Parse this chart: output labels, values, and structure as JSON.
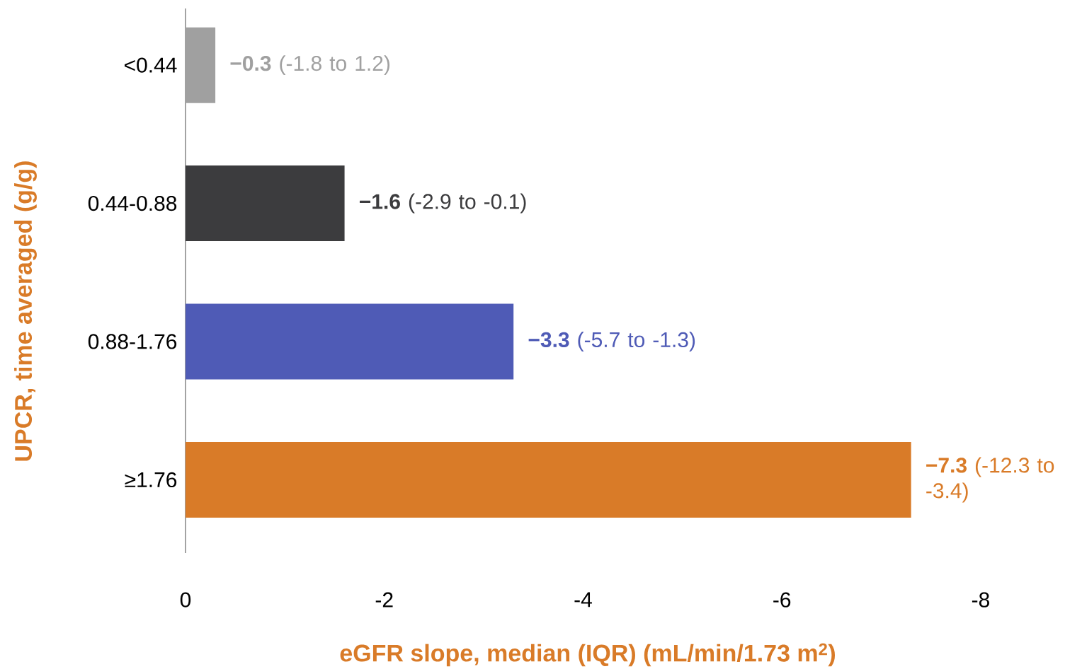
{
  "chart_data": {
    "type": "bar",
    "orientation": "horizontal",
    "ylabel": "UPCR, time averaged (g/g)",
    "xlabel": "eGFR slope, median (IQR) (mL/min/1.73 m$^{2}$)",
    "categories": [
      "<0.44",
      "0.44-0.88",
      "0.88-1.76",
      "≥1.76"
    ],
    "values": [
      -0.3,
      -1.6,
      -3.3,
      -7.3
    ],
    "colors": [
      "#a0a0a0",
      "#3c3c3e",
      "#4f5bb6",
      "#d97b28"
    ],
    "value_labels": [
      "**−0.3** (-1.8 to 1.2)",
      "**−1.6** (-2.9 to -0.1)",
      "**−3.3** (-5.7 to -1.3)",
      "**−7.3** (-12.3 to -3.4)"
    ],
    "xlim": [
      0,
      -8
    ],
    "xticks": [
      0,
      -2,
      -4,
      -6,
      -8
    ]
  }
}
